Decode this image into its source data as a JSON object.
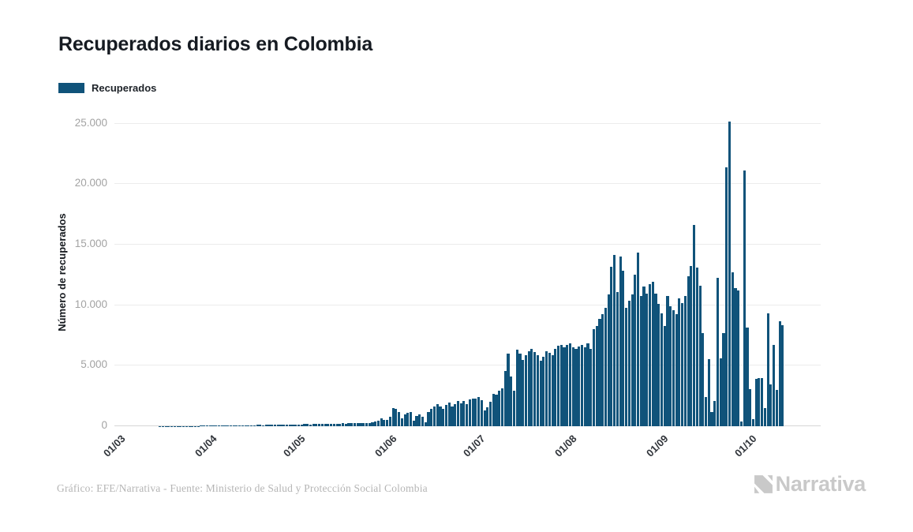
{
  "header": {
    "title": "Recuperados diarios en Colombia"
  },
  "legend": {
    "label": "Recuperados",
    "color": "#10537A"
  },
  "footer": {
    "credit": "Gráfico: EFE/Narrativa - Fuente: Ministerio de Salud y Protección Social Colombia",
    "brand": "Narrativa"
  },
  "icons": {
    "brand_glyph": "narrativa-n-logo"
  },
  "chart_data": {
    "type": "bar",
    "title": "Recuperados diarios en Colombia",
    "series_name": "Recuperados",
    "xlabel": "",
    "ylabel": "Número de recuperados",
    "x_frequency": "daily",
    "x_start_label": "01/03",
    "x_tick_labels": [
      "01/03",
      "01/04",
      "01/05",
      "01/06",
      "01/07",
      "01/08",
      "01/09",
      "01/10"
    ],
    "x_tick_day_offsets": [
      0,
      31,
      61,
      92,
      122,
      153,
      184,
      214
    ],
    "y_tick_labels": [
      "0",
      "5.000",
      "10.000",
      "15.000",
      "20.000",
      "25.000"
    ],
    "y_tick_values": [
      0,
      5000,
      10000,
      15000,
      20000,
      25000
    ],
    "ylim": [
      0,
      25500
    ],
    "grid": "horizontal",
    "legend_position": "top-left",
    "bar_color": "#10537A",
    "values": [
      0,
      0,
      0,
      0,
      0,
      0,
      0,
      0,
      0,
      0,
      3,
      4,
      3,
      5,
      4,
      6,
      8,
      10,
      9,
      12,
      15,
      13,
      18,
      20,
      17,
      22,
      25,
      28,
      30,
      35,
      40,
      45,
      40,
      50,
      55,
      48,
      60,
      65,
      58,
      70,
      75,
      68,
      80,
      85,
      78,
      90,
      95,
      88,
      100,
      105,
      98,
      110,
      115,
      105,
      120,
      125,
      115,
      130,
      140,
      128,
      150,
      140,
      155,
      145,
      165,
      175,
      160,
      180,
      190,
      175,
      195,
      205,
      190,
      210,
      220,
      205,
      225,
      235,
      215,
      240,
      250,
      230,
      255,
      265,
      245,
      270,
      285,
      320,
      380,
      450,
      650,
      550,
      540,
      760,
      1520,
      1410,
      1200,
      650,
      980,
      1090,
      1200,
      430,
      870,
      980,
      760,
      330,
      1200,
      1410,
      1630,
      1850,
      1630,
      1410,
      1740,
      1950,
      1630,
      1850,
      2060,
      1900,
      2100,
      1800,
      2200,
      2300,
      2280,
      2400,
      2150,
      1300,
      1550,
      2050,
      2700,
      2600,
      2950,
      3150,
      4550,
      6000,
      4100,
      2930,
      6300,
      5980,
      5500,
      5870,
      6190,
      6400,
      6100,
      5870,
      5430,
      5760,
      6190,
      6080,
      5870,
      6400,
      6630,
      6700,
      6500,
      6700,
      6850,
      6500,
      6400,
      6600,
      6700,
      6500,
      6850,
      6400,
      8040,
      8260,
      8900,
      9240,
      9780,
      10870,
      13150,
      14130,
      11080,
      14020,
      12820,
      9780,
      10400,
      10870,
      12500,
      14340,
      10760,
      11520,
      10980,
      11740,
      11950,
      10980,
      10110,
      9300,
      8260,
      10760,
      9890,
      9560,
      9240,
      10540,
      10200,
      10760,
      12390,
      13260,
      16600,
      13100,
      11630,
      7700,
      2400,
      5540,
      1200,
      2060,
      12280,
      5600,
      7700,
      21400,
      25200,
      12700,
      11400,
      11200,
      400,
      21100,
      8150,
      3050,
      600,
      3900,
      4000,
      4000,
      1500,
      9350,
      3470,
      6730,
      3000,
      8690,
      8350
    ]
  }
}
